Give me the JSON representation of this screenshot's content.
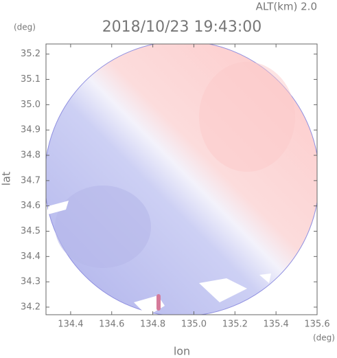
{
  "chart_data": {
    "type": "radar-map",
    "title": "2018/10/23 19:43:00",
    "annotation": "ALT(km) 2.0",
    "x_label": "lon",
    "x_unit": "(deg)",
    "y_label": "lat",
    "y_unit": "(deg)",
    "xlim": [
      134.28,
      135.6
    ],
    "xticks": [
      134.4,
      134.6,
      134.8,
      {
        "value": 135,
        "label": "135.0"
      },
      135.2,
      135.4,
      135.6
    ],
    "ylim": [
      34.17,
      35.24
    ],
    "yticks": [
      34.2,
      34.3,
      34.4,
      34.5,
      34.6,
      34.7,
      34.8,
      34.9,
      {
        "value": 35,
        "label": "35.0"
      },
      35.1,
      35.2
    ]
  }
}
